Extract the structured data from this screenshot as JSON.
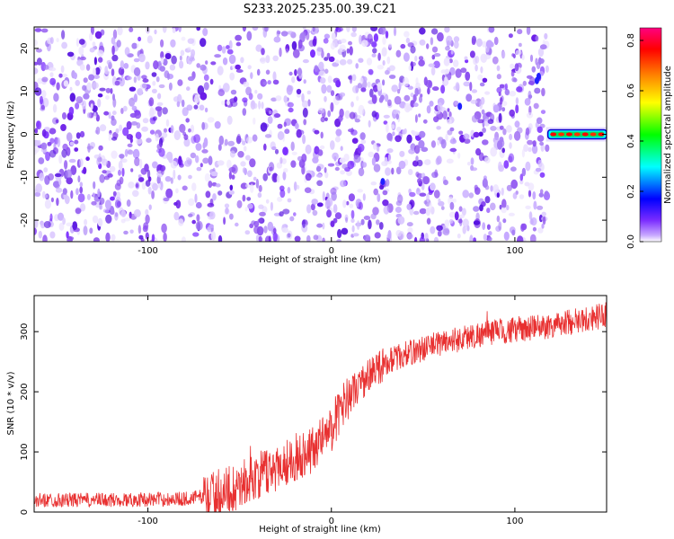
{
  "title": "S233.2025.235.00.39.C21",
  "chart_data": [
    {
      "type": "heatmap",
      "xlabel": "Height of straight line (km)",
      "ylabel": "Frequency (Hz)",
      "xlim": [
        -162,
        150
      ],
      "ylim": [
        -25,
        25
      ],
      "x_ticks": [
        "-100",
        "0",
        "100"
      ],
      "x_tick_values": [
        -100,
        0,
        100
      ],
      "y_ticks": [
        "20",
        "10",
        "0",
        "-10",
        "-20"
      ],
      "y_tick_values": [
        20,
        10,
        0,
        -10,
        -20
      ],
      "noise_extent_x": [
        -162,
        118
      ],
      "signal_band": {
        "x": [
          118,
          150
        ],
        "frequency_hz": 0,
        "amplitude": 0.8
      },
      "colorbar": {
        "label": "Normalized spectral amplitude",
        "ticks": [
          "0.0",
          "0.2",
          "0.4",
          "0.6",
          "0.8"
        ],
        "tick_values": [
          0,
          0.2,
          0.4,
          0.6,
          0.8
        ],
        "range": [
          0,
          0.85
        ],
        "colors": [
          "#ffffff",
          "#c8a8ff",
          "#7a2cff",
          "#0000ff",
          "#00ffff",
          "#00ff00",
          "#ffff00",
          "#ff8000",
          "#ff0000",
          "#ff0080"
        ]
      }
    },
    {
      "type": "line",
      "xlabel": "Height of straight line (km)",
      "ylabel": "SNR (10 * v/v)",
      "xlim": [
        -162,
        150
      ],
      "ylim": [
        0,
        360
      ],
      "x_ticks": [
        "-100",
        "0",
        "100"
      ],
      "x_tick_values": [
        -100,
        0,
        100
      ],
      "y_ticks": [
        "300",
        "200",
        "100",
        "0"
      ],
      "y_tick_values": [
        300,
        200,
        100,
        0
      ],
      "color": "#e83030",
      "trend_points": [
        [
          -162,
          20
        ],
        [
          -120,
          20
        ],
        [
          -80,
          22
        ],
        [
          -65,
          28
        ],
        [
          -50,
          45
        ],
        [
          -40,
          60
        ],
        [
          -30,
          75
        ],
        [
          -20,
          90
        ],
        [
          -10,
          105
        ],
        [
          0,
          140
        ],
        [
          5,
          170
        ],
        [
          10,
          195
        ],
        [
          20,
          225
        ],
        [
          30,
          250
        ],
        [
          40,
          262
        ],
        [
          50,
          272
        ],
        [
          60,
          282
        ],
        [
          70,
          288
        ],
        [
          80,
          295
        ],
        [
          90,
          300
        ],
        [
          100,
          303
        ],
        [
          110,
          306
        ],
        [
          120,
          310
        ],
        [
          130,
          316
        ],
        [
          140,
          322
        ],
        [
          150,
          328
        ]
      ]
    }
  ]
}
